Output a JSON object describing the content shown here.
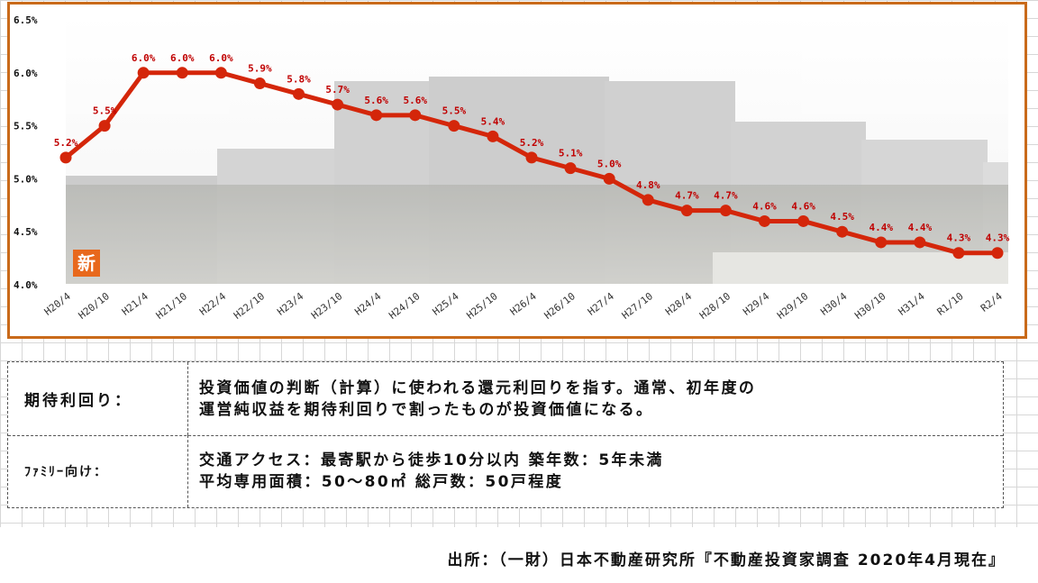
{
  "chart_data": {
    "type": "line",
    "title": "",
    "xlabel": "",
    "ylabel": "",
    "ylim": [
      4.0,
      6.5
    ],
    "yticks": [
      "4.0%",
      "4.5%",
      "5.0%",
      "5.5%",
      "6.0%",
      "6.5%"
    ],
    "categories": [
      "H20/4",
      "H20/10",
      "H21/4",
      "H21/10",
      "H22/4",
      "H22/10",
      "H23/4",
      "H23/10",
      "H24/4",
      "H24/10",
      "H25/4",
      "H25/10",
      "H26/4",
      "H26/10",
      "H27/4",
      "H27/10",
      "H28/4",
      "H28/10",
      "H29/4",
      "H29/10",
      "H30/4",
      "H30/10",
      "H31/4",
      "R1/10",
      "R2/4"
    ],
    "series": [
      {
        "values": [
          5.2,
          5.5,
          6.0,
          6.0,
          6.0,
          5.9,
          5.8,
          5.7,
          5.6,
          5.6,
          5.5,
          5.4,
          5.2,
          5.1,
          5.0,
          4.8,
          4.7,
          4.7,
          4.6,
          4.6,
          4.5,
          4.4,
          4.4,
          4.3,
          4.3
        ],
        "labels": [
          "5.2%",
          "5.5%",
          "6.0%",
          "6.0%",
          "6.0%",
          "5.9%",
          "5.8%",
          "5.7%",
          "5.6%",
          "5.6%",
          "5.5%",
          "5.4%",
          "5.2%",
          "5.1%",
          "5.0%",
          "4.8%",
          "4.7%",
          "4.7%",
          "4.6%",
          "4.6%",
          "4.5%",
          "4.4%",
          "4.4%",
          "4.3%",
          "4.3%"
        ],
        "color": "#d4260a"
      }
    ],
    "grid": false,
    "badge_text": "新",
    "colors": {
      "frame": "#c96a1a",
      "line": "#d4260a",
      "label": "#c00000"
    }
  },
  "definitions": {
    "yield_label": "期待利回り：",
    "yield_text_1": "投資価値の判断（計算）に使われる還元利回りを指す。通常、初年度の",
    "yield_text_2": "運営純収益を期待利回りで割ったものが投資価値になる。",
    "family_label": "ﾌｧﾐﾘｰ向け：",
    "family_text_1": "交通アクセス：最寄駅から徒歩10分以内 築年数：5年未満",
    "family_text_2": "平均専用面積：50～80㎡ 総戸数：50戸程度"
  },
  "source": "出所：（一財）日本不動産研究所『不動産投資家調査 2020年4月現在』"
}
